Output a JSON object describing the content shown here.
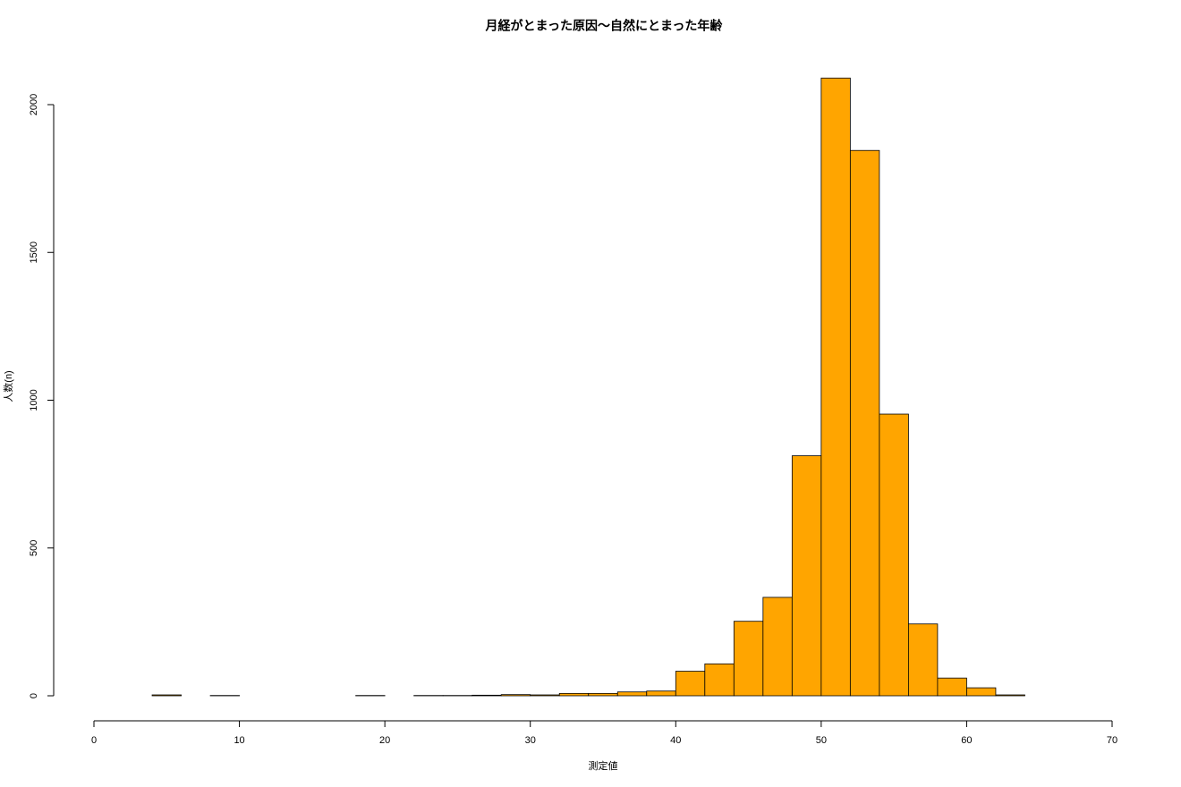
{
  "chart_data": {
    "type": "histogram",
    "title": "月経がとまった原因〜自然にとまった年齢",
    "xlabel": "測定値",
    "ylabel": "人数(n)",
    "bins": [
      4,
      6,
      8,
      10,
      12,
      14,
      16,
      18,
      20,
      22,
      24,
      26,
      28,
      30,
      32,
      34,
      36,
      38,
      40,
      42,
      44,
      46,
      48,
      50,
      52,
      54,
      56,
      58,
      60,
      62,
      64,
      66
    ],
    "values": [
      3,
      0,
      1,
      0,
      0,
      0,
      0,
      1,
      0,
      1,
      1,
      2,
      4,
      3,
      8,
      8,
      13,
      16,
      83,
      108,
      252,
      333,
      812,
      2090,
      1845,
      953,
      243,
      60,
      27,
      3,
      0
    ],
    "color": "#ffa500",
    "xlim": [
      0,
      70
    ],
    "xticks": [
      0,
      10,
      20,
      30,
      40,
      50,
      60,
      70
    ],
    "ylim": [
      0,
      2000
    ],
    "yticks": [
      0,
      500,
      1000,
      1500,
      2000
    ]
  }
}
